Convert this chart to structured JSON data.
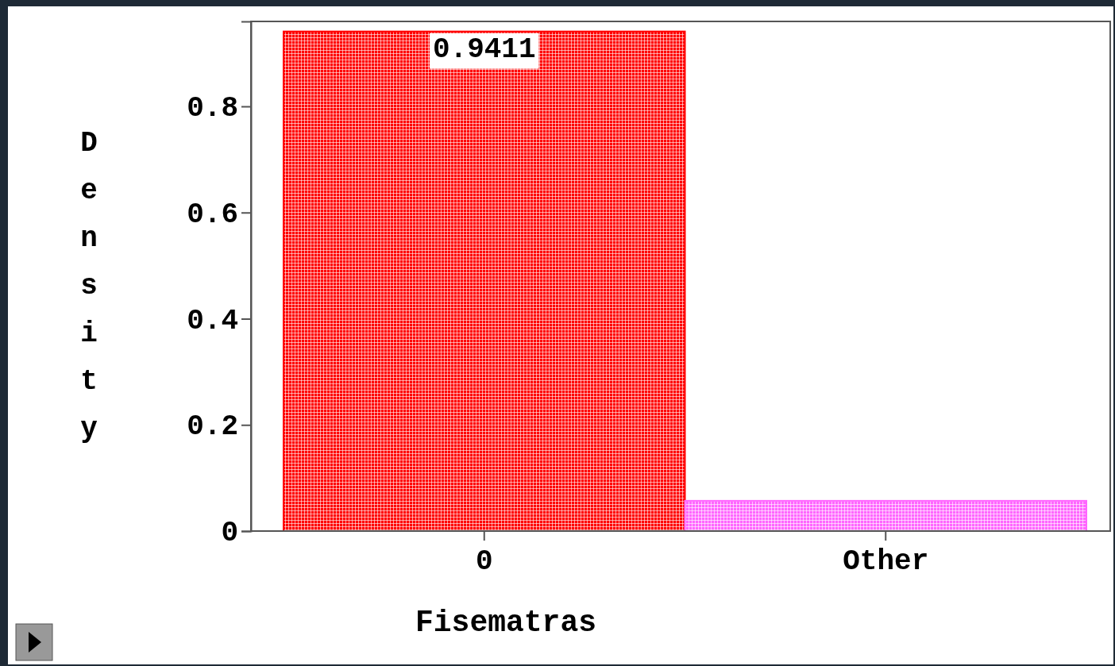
{
  "chart_data": {
    "type": "bar",
    "xlabel": "Fisematras",
    "ylabel": "Density",
    "categories": [
      "0",
      "Other"
    ],
    "values": [
      0.9411,
      0.057
    ],
    "value_labels": [
      "0.9411",
      null
    ],
    "colors": [
      "#ff0000",
      "#ff66ff"
    ],
    "ylim": [
      0,
      0.96
    ],
    "yticks": [
      0,
      0.2,
      0.4,
      0.6,
      0.8
    ]
  }
}
